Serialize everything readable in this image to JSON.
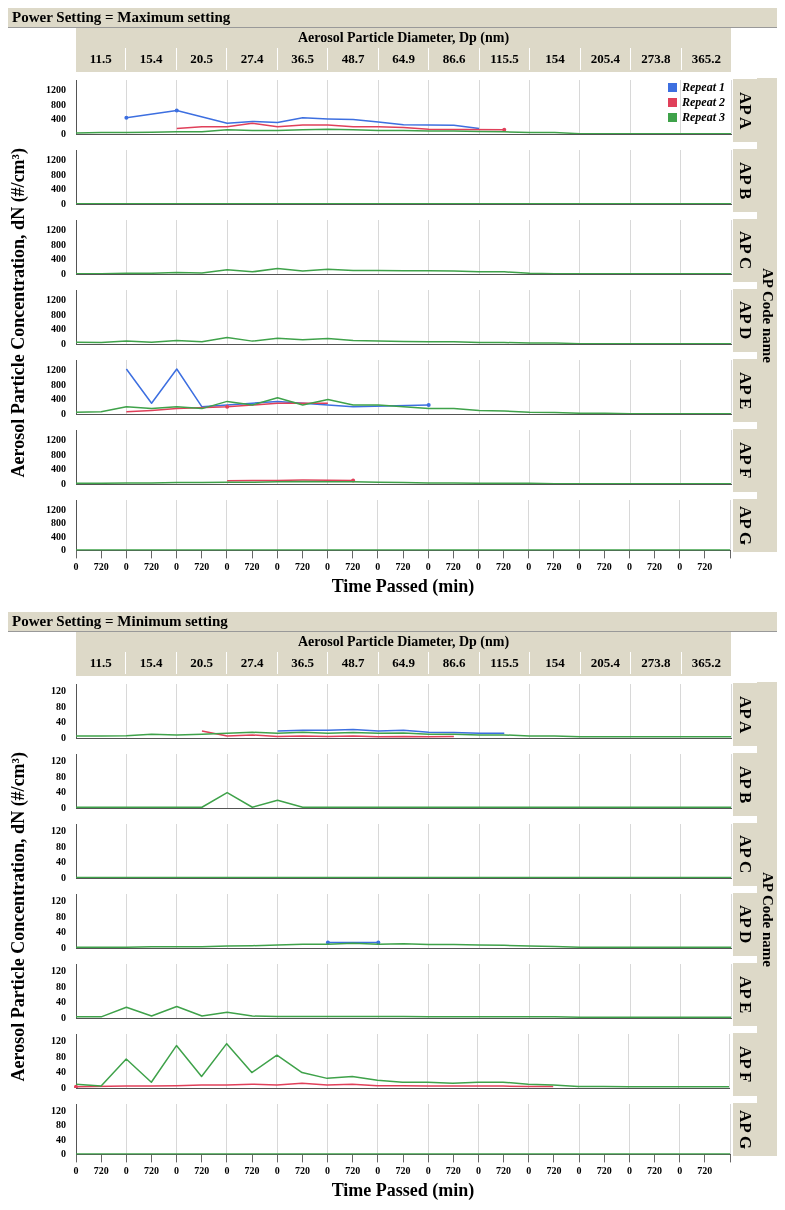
{
  "chart_data": [
    {
      "type": "line",
      "title": "Power Setting = Maximum setting",
      "ylabel": "Aerosol Particle Concentration, dN (#/cm³)",
      "annotations": [
        "Aerosol Particle Diameter, Dp (nm)",
        "11.5",
        "15.4",
        "20.5",
        "27.4",
        "36.5",
        "48.7",
        "64.9",
        "86.6",
        "115.5",
        "154",
        "205.4",
        "273.8",
        "365.2",
        "AP Code name"
      ],
      "y2label": "AP A",
      "legend": "top right",
      "grid": "x",
      "tick_labels": "y",
      "categories": [
        "0",
        "720",
        "0",
        "720",
        "0",
        "720",
        "0",
        "720",
        "0",
        "720",
        "0",
        "720",
        "0",
        "720",
        "0",
        "720",
        "0",
        "720",
        "0",
        "720",
        "0",
        "720",
        "0",
        "720",
        "0",
        "720",
        null
      ],
      "ylim": [
        0,
        1500
      ],
      "yticks": [
        0,
        400,
        800,
        1200
      ],
      "series": [
        {
          "name": "Repeat 1",
          "color": "#3d6fe0",
          "values": [
            null,
            null,
            450,
            null,
            650,
            null,
            300,
            350,
            320,
            450,
            420,
            400,
            330,
            260,
            250,
            240,
            150,
            null,
            null,
            null,
            null,
            null,
            null,
            null,
            null,
            null,
            null
          ]
        },
        {
          "name": "Repeat 2",
          "color": "#e0405a",
          "values": [
            null,
            null,
            null,
            null,
            150,
            200,
            200,
            300,
            200,
            250,
            250,
            200,
            200,
            180,
            130,
            null,
            null,
            120,
            null,
            null,
            null,
            null,
            null,
            null,
            null,
            null,
            null
          ]
        },
        {
          "name": "Repeat 3",
          "color": "#3fa24a",
          "values": [
            30,
            40,
            40,
            50,
            60,
            60,
            120,
            100,
            100,
            120,
            130,
            120,
            100,
            100,
            80,
            80,
            70,
            60,
            40,
            40,
            10,
            10,
            10,
            10,
            10,
            10,
            10
          ]
        }
      ]
    },
    {
      "type": "line",
      "y2label": "AP B",
      "grid": "x",
      "tick_labels": "y",
      "categories": [
        "0",
        "720",
        "0",
        "720",
        "0",
        "720",
        "0",
        "720",
        "0",
        "720",
        "0",
        "720",
        "0",
        "720",
        "0",
        "720",
        "0",
        "720",
        "0",
        "720",
        "0",
        "720",
        "0",
        "720",
        "0",
        "720",
        null
      ],
      "ylim": [
        0,
        1500
      ],
      "yticks": [
        0,
        400,
        800,
        1200
      ],
      "series": [
        {
          "color": "#3d6fe0",
          "values": [
            null,
            null,
            null,
            null,
            null,
            null,
            null,
            null,
            null,
            null,
            null,
            null,
            null,
            null,
            null,
            null,
            null,
            null,
            null,
            null,
            null,
            null,
            null,
            null,
            null,
            null,
            null
          ]
        },
        {
          "color": "#e0405a",
          "values": [
            null,
            null,
            null,
            null,
            null,
            null,
            null,
            null,
            null,
            null,
            null,
            null,
            null,
            null,
            null,
            null,
            null,
            null,
            null,
            null,
            null,
            null,
            null,
            null,
            null,
            null,
            null
          ]
        },
        {
          "color": "#3fa24a",
          "values": [
            10,
            10,
            10,
            10,
            10,
            10,
            10,
            10,
            10,
            10,
            10,
            10,
            10,
            10,
            10,
            10,
            10,
            10,
            10,
            10,
            10,
            10,
            10,
            10,
            10,
            10,
            10
          ]
        }
      ]
    },
    {
      "type": "line",
      "y2label": "AP C",
      "grid": "x",
      "tick_labels": "y",
      "categories": [
        "0",
        "720",
        "0",
        "720",
        "0",
        "720",
        "0",
        "720",
        "0",
        "720",
        "0",
        "720",
        "0",
        "720",
        "0",
        "720",
        "0",
        "720",
        "0",
        "720",
        "0",
        "720",
        "0",
        "720",
        "0",
        "720",
        null
      ],
      "ylim": [
        0,
        1500
      ],
      "yticks": [
        0,
        400,
        800,
        1200
      ],
      "series": [
        {
          "color": "#3d6fe0",
          "values": [
            null,
            null,
            null,
            null,
            null,
            null,
            null,
            null,
            null,
            null,
            null,
            null,
            null,
            null,
            null,
            null,
            null,
            null,
            null,
            null,
            null,
            null,
            null,
            null,
            null,
            null,
            null
          ]
        },
        {
          "color": "#e0405a",
          "values": [
            null,
            null,
            null,
            null,
            null,
            null,
            null,
            null,
            null,
            null,
            null,
            null,
            null,
            null,
            null,
            null,
            null,
            null,
            null,
            null,
            null,
            null,
            null,
            null,
            null,
            null,
            null
          ]
        },
        {
          "color": "#3fa24a",
          "values": [
            10,
            10,
            20,
            20,
            40,
            30,
            120,
            60,
            150,
            80,
            130,
            100,
            100,
            90,
            90,
            80,
            60,
            60,
            20,
            10,
            10,
            10,
            10,
            10,
            10,
            10,
            10
          ]
        }
      ]
    },
    {
      "type": "line",
      "y2label": "AP D",
      "grid": "x",
      "tick_labels": "y",
      "categories": [
        "0",
        "720",
        "0",
        "720",
        "0",
        "720",
        "0",
        "720",
        "0",
        "720",
        "0",
        "720",
        "0",
        "720",
        "0",
        "720",
        "0",
        "720",
        "0",
        "720",
        "0",
        "720",
        "0",
        "720",
        "0",
        "720",
        null
      ],
      "ylim": [
        0,
        1500
      ],
      "yticks": [
        0,
        400,
        800,
        1200
      ],
      "series": [
        {
          "color": "#3d6fe0",
          "values": [
            null,
            null,
            null,
            null,
            null,
            null,
            null,
            null,
            null,
            null,
            null,
            null,
            null,
            null,
            null,
            null,
            null,
            null,
            null,
            null,
            null,
            null,
            null,
            null,
            null,
            null,
            null
          ]
        },
        {
          "color": "#e0405a",
          "values": [
            null,
            null,
            null,
            null,
            null,
            null,
            null,
            null,
            null,
            null,
            null,
            null,
            null,
            null,
            null,
            null,
            null,
            null,
            null,
            null,
            null,
            null,
            null,
            null,
            null,
            null,
            null
          ]
        },
        {
          "color": "#3fa24a",
          "values": [
            50,
            40,
            80,
            50,
            100,
            60,
            180,
            80,
            160,
            120,
            150,
            100,
            80,
            70,
            60,
            60,
            40,
            40,
            30,
            30,
            10,
            10,
            10,
            10,
            10,
            10,
            10
          ]
        }
      ]
    },
    {
      "type": "line",
      "y2label": "AP E",
      "grid": "x",
      "tick_labels": "y",
      "categories": [
        "0",
        "720",
        "0",
        "720",
        "0",
        "720",
        "0",
        "720",
        "0",
        "720",
        "0",
        "720",
        "0",
        "720",
        "0",
        "720",
        "0",
        "720",
        "0",
        "720",
        "0",
        "720",
        "0",
        "720",
        "0",
        "720",
        null
      ],
      "ylim": [
        0,
        1500
      ],
      "yticks": [
        0,
        400,
        800,
        1200
      ],
      "series": [
        {
          "color": "#3d6fe0",
          "values": [
            null,
            null,
            1250,
            300,
            1250,
            200,
            null,
            300,
            350,
            null,
            250,
            200,
            null,
            null,
            250,
            null,
            null,
            null,
            null,
            null,
            null,
            null,
            null,
            null,
            null,
            null,
            null
          ]
        },
        {
          "color": "#e0405a",
          "values": [
            null,
            null,
            60,
            100,
            150,
            null,
            200,
            null,
            300,
            300,
            300,
            null,
            null,
            null,
            null,
            null,
            null,
            null,
            null,
            null,
            null,
            null,
            null,
            null,
            null,
            null,
            null
          ]
        },
        {
          "color": "#3fa24a",
          "values": [
            50,
            60,
            200,
            150,
            200,
            150,
            350,
            250,
            450,
            250,
            400,
            250,
            250,
            200,
            150,
            150,
            100,
            80,
            50,
            40,
            20,
            20,
            10,
            10,
            10,
            10,
            10
          ]
        }
      ]
    },
    {
      "type": "line",
      "y2label": "AP F",
      "grid": "x",
      "tick_labels": "y",
      "categories": [
        "0",
        "720",
        "0",
        "720",
        "0",
        "720",
        "0",
        "720",
        "0",
        "720",
        "0",
        "720",
        "0",
        "720",
        "0",
        "720",
        "0",
        "720",
        "0",
        "720",
        "0",
        "720",
        "0",
        "720",
        "0",
        "720",
        null
      ],
      "ylim": [
        0,
        1500
      ],
      "yticks": [
        0,
        400,
        800,
        1200
      ],
      "series": [
        {
          "color": "#3d6fe0",
          "values": [
            null,
            null,
            null,
            null,
            null,
            null,
            null,
            null,
            null,
            null,
            null,
            null,
            null,
            null,
            null,
            null,
            null,
            null,
            null,
            null,
            null,
            null,
            null,
            null,
            null,
            null,
            null
          ]
        },
        {
          "color": "#e0405a",
          "values": [
            null,
            null,
            null,
            null,
            null,
            null,
            90,
            100,
            100,
            110,
            null,
            100,
            null,
            null,
            null,
            null,
            null,
            null,
            null,
            null,
            null,
            null,
            null,
            null,
            null,
            null,
            null
          ]
        },
        {
          "color": "#3fa24a",
          "values": [
            20,
            20,
            30,
            30,
            40,
            40,
            50,
            50,
            60,
            70,
            60,
            60,
            50,
            40,
            30,
            30,
            20,
            20,
            20,
            10,
            10,
            10,
            10,
            10,
            10,
            10,
            10
          ]
        }
      ]
    },
    {
      "type": "line",
      "y2label": "AP G",
      "grid": "x",
      "xlabel": "Time Passed (min)",
      "categories": [
        "0",
        "720",
        "0",
        "720",
        "0",
        "720",
        "0",
        "720",
        "0",
        "720",
        "0",
        "720",
        "0",
        "720",
        "0",
        "720",
        "0",
        "720",
        "0",
        "720",
        "0",
        "720",
        "0",
        "720",
        "0",
        "720",
        null
      ],
      "ylim": [
        0,
        1500
      ],
      "yticks": [
        0,
        400,
        800,
        1200
      ],
      "series": [
        {
          "color": "#3d6fe0",
          "values": [
            null,
            null,
            null,
            null,
            null,
            null,
            null,
            null,
            null,
            null,
            null,
            null,
            null,
            null,
            null,
            null,
            null,
            null,
            null,
            null,
            null,
            null,
            null,
            null,
            null,
            null,
            null
          ]
        },
        {
          "color": "#e0405a",
          "values": [
            null,
            null,
            null,
            null,
            null,
            null,
            null,
            null,
            null,
            null,
            null,
            null,
            null,
            null,
            null,
            null,
            null,
            null,
            null,
            null,
            null,
            null,
            null,
            null,
            null,
            null,
            null
          ]
        },
        {
          "color": "#3fa24a",
          "values": [
            10,
            10,
            10,
            10,
            10,
            10,
            10,
            10,
            10,
            10,
            10,
            10,
            10,
            10,
            10,
            10,
            10,
            10,
            10,
            10,
            10,
            10,
            10,
            10,
            10,
            10,
            10
          ]
        }
      ]
    },
    {
      "type": "line",
      "title": "Power Setting = Minimum setting",
      "ylabel": "Aerosol Particle Concentration, dN (#/cm³)",
      "annotations": [
        "Aerosol Particle Diameter, Dp (nm)",
        "11.5",
        "15.4",
        "20.5",
        "27.4",
        "36.5",
        "48.7",
        "64.9",
        "86.6",
        "115.5",
        "154",
        "205.4",
        "273.8",
        "365.2",
        "AP Code name"
      ],
      "y2label": "AP A",
      "grid": "x",
      "tick_labels": "y",
      "categories": [
        "0",
        "720",
        "0",
        "720",
        "0",
        "720",
        "0",
        "720",
        "0",
        "720",
        "0",
        "720",
        "0",
        "720",
        "0",
        "720",
        "0",
        "720",
        "0",
        "720",
        "0",
        "720",
        "0",
        "720",
        "0",
        "720",
        null
      ],
      "ylim": [
        0,
        140
      ],
      "yticks": [
        0,
        40,
        80,
        120
      ],
      "series": [
        {
          "color": "#3d6fe0",
          "values": [
            null,
            null,
            null,
            null,
            null,
            null,
            null,
            null,
            18,
            20,
            20,
            22,
            18,
            20,
            15,
            14,
            12,
            12,
            null,
            null,
            null,
            null,
            null,
            null,
            null,
            null,
            null
          ]
        },
        {
          "color": "#e0405a",
          "values": [
            null,
            null,
            null,
            null,
            null,
            18,
            5,
            8,
            4,
            5,
            4,
            5,
            3,
            4,
            3,
            4,
            null,
            null,
            null,
            null,
            null,
            null,
            null,
            null,
            null,
            null,
            null
          ]
        },
        {
          "color": "#3fa24a",
          "values": [
            5,
            5,
            6,
            10,
            8,
            10,
            12,
            15,
            12,
            15,
            12,
            14,
            12,
            13,
            10,
            10,
            8,
            8,
            5,
            5,
            3,
            3,
            3,
            3,
            3,
            3,
            3
          ]
        }
      ]
    },
    {
      "type": "line",
      "y2label": "AP B",
      "grid": "x",
      "tick_labels": "y",
      "categories": [
        "0",
        "720",
        "0",
        "720",
        "0",
        "720",
        "0",
        "720",
        "0",
        "720",
        "0",
        "720",
        "0",
        "720",
        "0",
        "720",
        "0",
        "720",
        "0",
        "720",
        "0",
        "720",
        "0",
        "720",
        "0",
        "720",
        null
      ],
      "ylim": [
        0,
        140
      ],
      "yticks": [
        0,
        40,
        80,
        120
      ],
      "series": [
        {
          "color": "#3d6fe0",
          "values": [
            null,
            null,
            null,
            null,
            null,
            null,
            null,
            null,
            null,
            null,
            null,
            null,
            null,
            null,
            null,
            null,
            null,
            null,
            null,
            null,
            null,
            null,
            null,
            null,
            null,
            null,
            null
          ]
        },
        {
          "color": "#e0405a",
          "values": [
            null,
            null,
            null,
            null,
            null,
            null,
            null,
            null,
            null,
            null,
            null,
            null,
            null,
            null,
            null,
            null,
            null,
            null,
            null,
            null,
            null,
            null,
            null,
            null,
            null,
            null,
            null
          ]
        },
        {
          "color": "#3fa24a",
          "values": [
            2,
            2,
            2,
            2,
            2,
            2,
            40,
            2,
            20,
            2,
            2,
            2,
            2,
            2,
            2,
            2,
            2,
            2,
            2,
            2,
            2,
            2,
            2,
            2,
            2,
            2,
            2
          ]
        }
      ]
    },
    {
      "type": "line",
      "y2label": "AP C",
      "grid": "x",
      "tick_labels": "y",
      "categories": [
        "0",
        "720",
        "0",
        "720",
        "0",
        "720",
        "0",
        "720",
        "0",
        "720",
        "0",
        "720",
        "0",
        "720",
        "0",
        "720",
        "0",
        "720",
        "0",
        "720",
        "0",
        "720",
        "0",
        "720",
        "0",
        "720",
        null
      ],
      "ylim": [
        0,
        140
      ],
      "yticks": [
        0,
        40,
        80,
        120
      ],
      "series": [
        {
          "color": "#3d6fe0",
          "values": [
            null,
            null,
            null,
            null,
            null,
            null,
            null,
            null,
            null,
            null,
            null,
            null,
            null,
            null,
            null,
            null,
            null,
            null,
            null,
            null,
            null,
            null,
            null,
            null,
            null,
            null,
            null
          ]
        },
        {
          "color": "#e0405a",
          "values": [
            null,
            null,
            null,
            null,
            null,
            null,
            null,
            null,
            null,
            null,
            null,
            null,
            null,
            null,
            null,
            null,
            null,
            null,
            null,
            null,
            null,
            null,
            null,
            null,
            null,
            null,
            null
          ]
        },
        {
          "color": "#3fa24a",
          "values": [
            1,
            1,
            1,
            1,
            1,
            1,
            1,
            1,
            1,
            1,
            1,
            1,
            1,
            1,
            1,
            1,
            1,
            1,
            1,
            1,
            1,
            1,
            1,
            1,
            1,
            1,
            1
          ]
        }
      ]
    },
    {
      "type": "line",
      "y2label": "AP D",
      "grid": "x",
      "tick_labels": "y",
      "categories": [
        "0",
        "720",
        "0",
        "720",
        "0",
        "720",
        "0",
        "720",
        "0",
        "720",
        "0",
        "720",
        "0",
        "720",
        "0",
        "720",
        "0",
        "720",
        "0",
        "720",
        "0",
        "720",
        "0",
        "720",
        "0",
        "720",
        null
      ],
      "ylim": [
        0,
        140
      ],
      "yticks": [
        0,
        40,
        80,
        120
      ],
      "series": [
        {
          "color": "#3d6fe0",
          "values": [
            null,
            null,
            null,
            null,
            null,
            null,
            null,
            null,
            null,
            null,
            14,
            null,
            14,
            null,
            null,
            null,
            null,
            null,
            null,
            null,
            null,
            null,
            null,
            null,
            null,
            null,
            null
          ]
        },
        {
          "color": "#e0405a",
          "values": [
            null,
            null,
            null,
            null,
            null,
            null,
            null,
            null,
            null,
            null,
            null,
            null,
            null,
            null,
            null,
            null,
            null,
            null,
            null,
            null,
            null,
            null,
            null,
            null,
            null,
            null,
            null
          ]
        },
        {
          "color": "#3fa24a",
          "values": [
            2,
            2,
            2,
            3,
            3,
            3,
            5,
            6,
            8,
            10,
            10,
            12,
            10,
            11,
            9,
            9,
            8,
            7,
            5,
            4,
            2,
            2,
            2,
            2,
            2,
            2,
            2
          ]
        }
      ]
    },
    {
      "type": "line",
      "y2label": "AP E",
      "grid": "x",
      "tick_labels": "y",
      "categories": [
        "0",
        "720",
        "0",
        "720",
        "0",
        "720",
        "0",
        "720",
        "0",
        "720",
        "0",
        "720",
        "0",
        "720",
        "0",
        "720",
        "0",
        "720",
        "0",
        "720",
        "0",
        "720",
        "0",
        "720",
        "0",
        "720",
        null
      ],
      "ylim": [
        0,
        140
      ],
      "yticks": [
        0,
        40,
        80,
        120
      ],
      "series": [
        {
          "color": "#3d6fe0",
          "values": [
            null,
            null,
            null,
            null,
            null,
            null,
            null,
            null,
            null,
            null,
            null,
            null,
            null,
            null,
            null,
            null,
            null,
            null,
            null,
            null,
            null,
            null,
            null,
            null,
            null,
            null,
            null
          ]
        },
        {
          "color": "#e0405a",
          "values": [
            null,
            null,
            null,
            null,
            null,
            null,
            null,
            null,
            null,
            null,
            null,
            null,
            null,
            null,
            null,
            null,
            null,
            null,
            null,
            null,
            null,
            null,
            null,
            null,
            null,
            null,
            null
          ]
        },
        {
          "color": "#3fa24a",
          "values": [
            3,
            3,
            28,
            5,
            30,
            5,
            15,
            5,
            4,
            4,
            4,
            4,
            4,
            4,
            3,
            3,
            3,
            3,
            3,
            3,
            2,
            2,
            2,
            2,
            2,
            2,
            2
          ]
        }
      ]
    },
    {
      "type": "line",
      "y2label": "AP F",
      "grid": "x",
      "tick_labels": "y",
      "categories": [
        "0",
        "720",
        "0",
        "720",
        "0",
        "720",
        "0",
        "720",
        "0",
        "720",
        "0",
        "720",
        "0",
        "720",
        "0",
        "720",
        "0",
        "720",
        "0",
        "720",
        "0",
        "720",
        "0",
        "720",
        "0",
        "720",
        null
      ],
      "ylim": [
        0,
        140
      ],
      "yticks": [
        0,
        40,
        80,
        120
      ],
      "series": [
        {
          "color": "#3d6fe0",
          "values": [
            null,
            null,
            null,
            null,
            null,
            null,
            null,
            null,
            null,
            null,
            null,
            null,
            null,
            null,
            null,
            null,
            null,
            null,
            null,
            null,
            null,
            null,
            null,
            null,
            null,
            null,
            null
          ]
        },
        {
          "color": "#e0405a",
          "values": [
            3,
            null,
            5,
            5,
            6,
            8,
            8,
            10,
            8,
            12,
            8,
            10,
            6,
            6,
            5,
            5,
            5,
            5,
            4,
            4,
            null,
            null,
            null,
            null,
            null,
            null,
            null
          ]
        },
        {
          "color": "#3fa24a",
          "values": [
            10,
            5,
            75,
            15,
            110,
            30,
            115,
            40,
            85,
            40,
            25,
            30,
            20,
            15,
            15,
            12,
            15,
            15,
            10,
            8,
            4,
            4,
            3,
            3,
            3,
            3,
            3
          ]
        }
      ]
    },
    {
      "type": "line",
      "y2label": "AP G",
      "grid": "x",
      "xlabel": "Time Passed (min)",
      "categories": [
        "0",
        "720",
        "0",
        "720",
        "0",
        "720",
        "0",
        "720",
        "0",
        "720",
        "0",
        "720",
        "0",
        "720",
        "0",
        "720",
        "0",
        "720",
        "0",
        "720",
        "0",
        "720",
        "0",
        "720",
        "0",
        "720",
        null
      ],
      "ylim": [
        0,
        140
      ],
      "yticks": [
        0,
        40,
        80,
        120
      ],
      "series": [
        {
          "color": "#3d6fe0",
          "values": [
            null,
            null,
            null,
            null,
            null,
            null,
            null,
            null,
            null,
            null,
            null,
            null,
            null,
            null,
            null,
            null,
            null,
            null,
            null,
            null,
            null,
            null,
            null,
            null,
            null,
            null,
            null
          ]
        },
        {
          "color": "#e0405a",
          "values": [
            null,
            null,
            null,
            null,
            null,
            null,
            null,
            null,
            null,
            null,
            null,
            null,
            null,
            null,
            null,
            null,
            null,
            null,
            null,
            null,
            null,
            null,
            null,
            null,
            null,
            null,
            null
          ]
        },
        {
          "color": "#3fa24a",
          "values": [
            1,
            1,
            1,
            1,
            1,
            1,
            1,
            1,
            1,
            1,
            1,
            1,
            1,
            1,
            1,
            1,
            1,
            1,
            1,
            1,
            1,
            1,
            1,
            1,
            1,
            1,
            1
          ]
        }
      ]
    }
  ]
}
